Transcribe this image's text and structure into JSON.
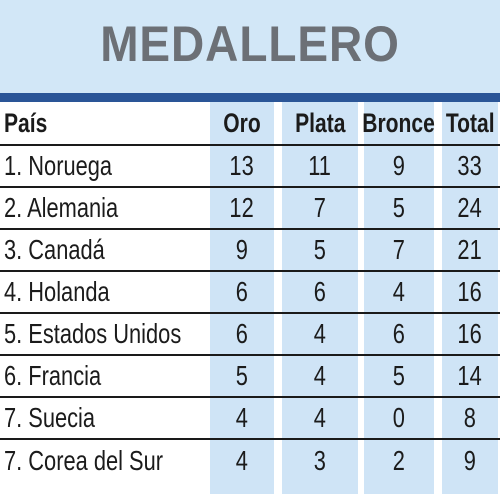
{
  "title": "MEDALLERO",
  "columns": {
    "country": "País",
    "gold": "Oro",
    "silver": "Plata",
    "bronze": "Bronce",
    "total": "Total"
  },
  "rows": [
    {
      "country": "1. Noruega",
      "gold": "13",
      "silver": "11",
      "bronze": "9",
      "total": "33"
    },
    {
      "country": "2. Alemania",
      "gold": "12",
      "silver": "7",
      "bronze": "5",
      "total": "24"
    },
    {
      "country": "3. Canadá",
      "gold": "9",
      "silver": "5",
      "bronze": "7",
      "total": "21"
    },
    {
      "country": "4. Holanda",
      "gold": "6",
      "silver": "6",
      "bronze": "4",
      "total": "16"
    },
    {
      "country": "5. Estados Unidos",
      "gold": "6",
      "silver": "4",
      "bronze": "6",
      "total": "16"
    },
    {
      "country": "6. Francia",
      "gold": "5",
      "silver": "4",
      "bronze": "5",
      "total": "14"
    },
    {
      "country": "7. Suecia",
      "gold": "4",
      "silver": "4",
      "bronze": "0",
      "total": "8"
    },
    {
      "country": "7. Corea del Sur",
      "gold": "4",
      "silver": "3",
      "bronze": "2",
      "total": "9"
    }
  ],
  "colors": {
    "header_bg": "#d2e7f7",
    "title_text": "#6c7076",
    "accent_bar": "#2a5597",
    "column_highlight": "#cfe4f6",
    "rule_lines": "#1a1a1a"
  }
}
